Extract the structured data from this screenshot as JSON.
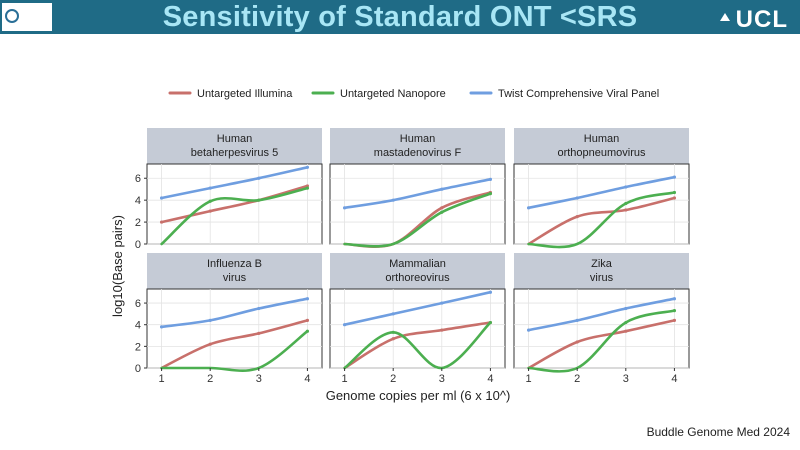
{
  "slide": {
    "title": "Sensitivity of Standard ONT <SRS",
    "brand": "UCL",
    "citation": "Buddle Genome Med 2024"
  },
  "chart_data": {
    "type": "line",
    "title": "",
    "xlabel": "Genome copies per ml (6 x 10^)",
    "ylabel": "log10(Base pairs)",
    "x": [
      1,
      2,
      3,
      4
    ],
    "xlim": [
      0.7,
      4.3
    ],
    "ylim": [
      0,
      7.3
    ],
    "yticks": [
      0,
      2,
      4,
      6
    ],
    "grid": true,
    "legend": "top",
    "series_meta": [
      {
        "name": "Untargeted Illumina",
        "color": "#c8706b"
      },
      {
        "name": "Untargeted Nanopore",
        "color": "#4caf50"
      },
      {
        "name": "Twist Comprehensive Viral Panel",
        "color": "#6f9ee0"
      }
    ],
    "panels": [
      {
        "title": [
          "Human",
          "betaherpesvirus 5"
        ],
        "series": [
          [
            2.0,
            3.0,
            4.0,
            5.3
          ],
          [
            0,
            3.9,
            4.0,
            5.1
          ],
          [
            4.2,
            5.1,
            6.0,
            7.0
          ]
        ]
      },
      {
        "title": [
          "Human",
          "mastadenovirus F"
        ],
        "series": [
          [
            0,
            0,
            3.3,
            4.7
          ],
          [
            0,
            0,
            2.9,
            4.6
          ],
          [
            3.3,
            4.0,
            5.0,
            5.9
          ]
        ]
      },
      {
        "title": [
          "Human",
          "orthopneumovirus"
        ],
        "series": [
          [
            0,
            2.5,
            3.1,
            4.2
          ],
          [
            0,
            0,
            3.7,
            4.7
          ],
          [
            3.3,
            4.2,
            5.2,
            6.1
          ]
        ]
      },
      {
        "title": [
          "Influenza B",
          "virus"
        ],
        "series": [
          [
            0,
            2.2,
            3.2,
            4.4
          ],
          [
            0,
            0,
            0,
            3.4
          ],
          [
            3.8,
            4.4,
            5.5,
            6.4
          ]
        ]
      },
      {
        "title": [
          "Mammalian",
          "orthoreovirus"
        ],
        "series": [
          [
            0,
            2.7,
            3.5,
            4.2
          ],
          [
            0,
            3.3,
            0,
            4.2
          ],
          [
            4.0,
            5.0,
            6.0,
            7.0
          ]
        ]
      },
      {
        "title": [
          "Zika",
          "virus"
        ],
        "series": [
          [
            0,
            2.4,
            3.4,
            4.4
          ],
          [
            0,
            0,
            4.2,
            5.3
          ],
          [
            3.5,
            4.4,
            5.5,
            6.4
          ]
        ]
      }
    ]
  }
}
